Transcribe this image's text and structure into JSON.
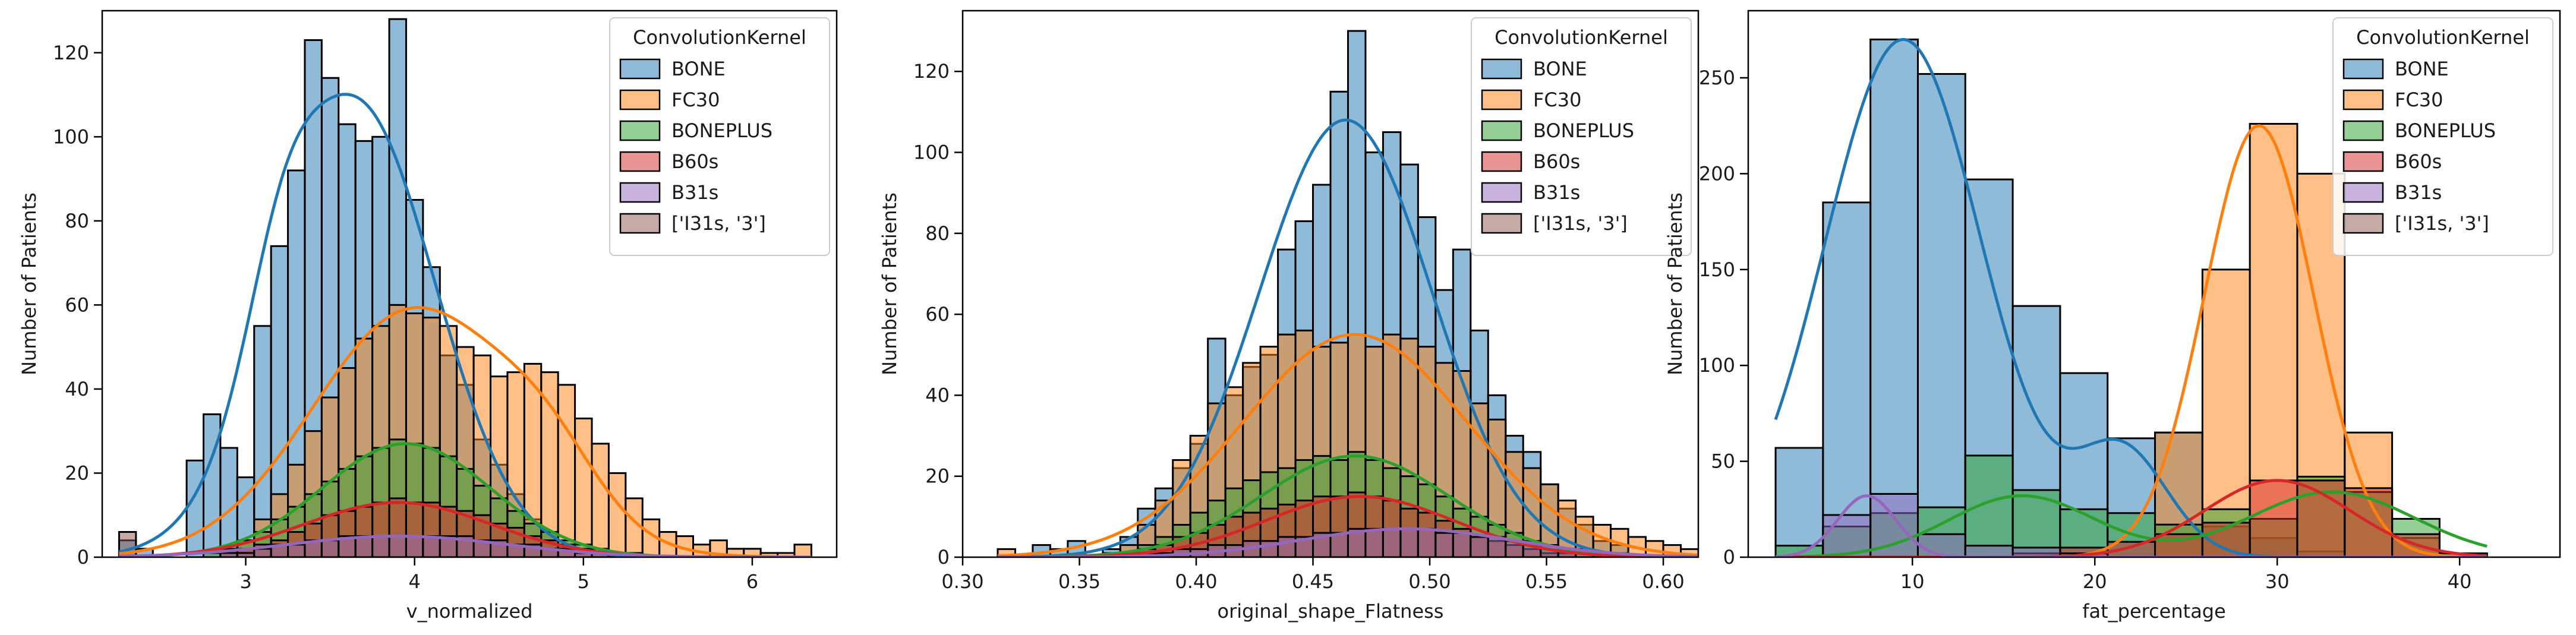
{
  "colors": {
    "BONE": "#1f77b4",
    "FC30": "#ff7f0e",
    "BONEPLUS": "#2ca02c",
    "B60s": "#d62728",
    "B31s": "#9467bd",
    "I31s": "#8c564b"
  },
  "chart_data": [
    {
      "type": "histogram",
      "title": "",
      "xlabel": "v_normalized",
      "ylabel": "Number of Patients",
      "xlim": [
        2.15,
        6.5
      ],
      "ylim": [
        0,
        130
      ],
      "xticks": [
        3,
        4,
        5,
        6
      ],
      "yticks": [
        0,
        20,
        40,
        60,
        80,
        100,
        120
      ],
      "legend_title": "ConvolutionKernel",
      "legend": [
        "BONE",
        "FC30",
        "BONEPLUS",
        "B60s",
        "B31s",
        "['I31s, '3']"
      ],
      "bins": {
        "start": 2.25,
        "width": 0.1,
        "count": 41
      },
      "series": [
        {
          "name": "BONE",
          "key": "BONE",
          "counts": [
            4,
            2,
            0,
            0,
            23,
            34,
            26,
            19,
            55,
            74,
            92,
            123,
            114,
            103,
            99,
            100,
            128,
            85,
            69,
            48,
            41,
            28,
            22,
            15,
            9,
            6,
            0,
            0,
            0,
            0,
            0,
            0,
            0,
            0,
            0,
            0,
            0,
            0,
            0,
            0,
            0
          ],
          "kde": {
            "amp": 108,
            "mu": 3.65,
            "sigma": 0.47,
            "amp2": 20,
            "mu2": 3.2,
            "sigma2": 0.2
          }
        },
        {
          "name": "FC30",
          "key": "FC30",
          "counts": [
            0,
            0,
            0,
            0,
            0,
            0,
            0,
            4,
            9,
            15,
            22,
            30,
            38,
            45,
            52,
            55,
            60,
            58,
            57,
            55,
            50,
            48,
            43,
            44,
            46,
            44,
            41,
            33,
            27,
            20,
            14,
            9,
            6,
            5,
            3,
            4,
            2,
            2,
            1,
            1,
            3
          ],
          "kde": {
            "amp": 59,
            "mu": 4.0,
            "sigma": 0.6,
            "amp2": 12,
            "mu2": 4.8,
            "sigma2": 0.3
          }
        },
        {
          "name": "BONEPLUS",
          "key": "BONEPLUS",
          "counts": [
            0,
            0,
            0,
            0,
            0,
            1,
            2,
            4,
            6,
            9,
            12,
            15,
            18,
            21,
            24,
            26,
            28,
            27,
            26,
            24,
            21,
            17,
            14,
            11,
            8,
            6,
            4,
            3,
            2,
            1,
            1,
            0,
            0,
            0,
            0,
            0,
            0,
            0,
            0,
            0,
            0
          ],
          "kde": {
            "amp": 27,
            "mu": 3.95,
            "sigma": 0.5
          }
        },
        {
          "name": "B60s",
          "key": "B60s",
          "counts": [
            0,
            0,
            0,
            0,
            0,
            0,
            1,
            2,
            3,
            4,
            6,
            8,
            10,
            11,
            12,
            13,
            14,
            13,
            13,
            12,
            11,
            10,
            8,
            7,
            5,
            4,
            3,
            2,
            1,
            1,
            0,
            0,
            0,
            0,
            0,
            0,
            0,
            0,
            0,
            0,
            0
          ],
          "kde": {
            "amp": 13,
            "mu": 3.9,
            "sigma": 0.55
          }
        },
        {
          "name": "B31s",
          "key": "B31s",
          "counts": [
            0,
            0,
            0,
            0,
            0,
            0,
            1,
            1,
            2,
            3,
            3,
            4,
            4,
            5,
            5,
            5,
            5,
            5,
            5,
            5,
            5,
            4,
            4,
            3,
            3,
            2,
            2,
            1,
            1,
            1,
            0,
            0,
            0,
            0,
            0,
            0,
            0,
            0,
            0,
            0,
            0
          ],
          "kde": {
            "amp": 5,
            "mu": 3.9,
            "sigma": 0.65
          }
        },
        {
          "name": "['I31s, '3']",
          "key": "I31s",
          "counts": [
            6,
            0,
            0,
            0,
            0,
            0,
            0,
            0,
            0,
            0,
            0,
            0,
            0,
            0,
            0,
            0,
            0,
            0,
            0,
            0,
            0,
            0,
            0,
            0,
            0,
            0,
            0,
            0,
            0,
            0,
            0,
            0,
            0,
            0,
            0,
            0,
            0,
            0,
            0,
            0,
            0
          ],
          "kde": null
        }
      ]
    },
    {
      "type": "histogram",
      "title": "",
      "xlabel": "original_shape_Flatness",
      "ylabel": "Number of Patients",
      "xlim": [
        0.3,
        0.615
      ],
      "ylim": [
        0,
        135
      ],
      "xticks": [
        0.3,
        0.35,
        0.4,
        0.45,
        0.5,
        0.55,
        0.6
      ],
      "yticks": [
        0,
        20,
        40,
        60,
        80,
        100,
        120
      ],
      "legend_title": "ConvolutionKernel",
      "legend": [
        "BONE",
        "FC30",
        "BONEPLUS",
        "B60s",
        "B31s",
        "['I31s, '3']"
      ],
      "bins": {
        "start": 0.315,
        "width": 0.0075,
        "count": 40
      },
      "series": [
        {
          "name": "BONE",
          "key": "BONE",
          "counts": [
            0,
            0,
            3,
            2,
            4,
            0,
            2,
            5,
            12,
            17,
            22,
            28,
            54,
            40,
            47,
            50,
            76,
            83,
            92,
            115,
            130,
            100,
            105,
            97,
            84,
            66,
            76,
            56,
            40,
            30,
            26,
            18,
            12,
            8,
            4,
            3,
            0,
            0,
            0,
            0
          ],
          "kde": {
            "amp": 108,
            "mu": 0.464,
            "sigma": 0.037
          }
        },
        {
          "name": "FC30",
          "key": "FC30",
          "counts": [
            2,
            0,
            0,
            0,
            0,
            0,
            1,
            3,
            8,
            14,
            24,
            30,
            38,
            42,
            48,
            52,
            55,
            56,
            52,
            53,
            55,
            52,
            55,
            54,
            52,
            48,
            46,
            38,
            34,
            26,
            22,
            18,
            14,
            10,
            8,
            7,
            5,
            4,
            3,
            2
          ],
          "kde": {
            "amp": 55,
            "mu": 0.468,
            "sigma": 0.048
          }
        },
        {
          "name": "BONEPLUS",
          "key": "BONEPLUS",
          "counts": [
            0,
            0,
            0,
            0,
            0,
            0,
            0,
            1,
            3,
            5,
            8,
            11,
            14,
            17,
            19,
            21,
            22,
            24,
            25,
            24,
            26,
            24,
            22,
            20,
            18,
            15,
            12,
            10,
            8,
            6,
            4,
            3,
            2,
            1,
            1,
            0,
            0,
            0,
            0,
            0
          ],
          "kde": {
            "amp": 25,
            "mu": 0.468,
            "sigma": 0.04
          }
        },
        {
          "name": "B60s",
          "key": "B60s",
          "counts": [
            0,
            0,
            0,
            0,
            0,
            0,
            0,
            1,
            2,
            3,
            5,
            6,
            8,
            10,
            11,
            12,
            13,
            14,
            15,
            15,
            16,
            15,
            14,
            12,
            11,
            9,
            7,
            5,
            4,
            3,
            2,
            1,
            1,
            0,
            0,
            0,
            0,
            0,
            0,
            0
          ],
          "kde": {
            "amp": 15,
            "mu": 0.47,
            "sigma": 0.04
          }
        },
        {
          "name": "B31s",
          "key": "B31s",
          "counts": [
            0,
            0,
            0,
            0,
            0,
            0,
            0,
            0,
            1,
            1,
            2,
            2,
            3,
            3,
            4,
            4,
            5,
            5,
            6,
            6,
            7,
            7,
            7,
            7,
            7,
            6,
            6,
            5,
            5,
            4,
            3,
            3,
            2,
            2,
            1,
            1,
            0,
            0,
            0,
            0
          ],
          "kde": {
            "amp": 7,
            "mu": 0.49,
            "sigma": 0.045
          }
        },
        {
          "name": "['I31s, '3']",
          "key": "I31s",
          "counts": [
            0,
            0,
            0,
            0,
            0,
            0,
            0,
            0,
            0,
            0,
            0,
            0,
            0,
            0,
            0,
            0,
            0,
            0,
            0,
            0,
            0,
            0,
            0,
            0,
            0,
            0,
            0,
            0,
            0,
            0,
            0,
            0,
            0,
            0,
            0,
            0,
            0,
            0,
            0,
            0
          ],
          "kde": null
        }
      ]
    },
    {
      "type": "histogram",
      "title": "",
      "xlabel": "fat_percentage",
      "ylabel": "Number of Patients",
      "xlim": [
        1.0,
        45.5
      ],
      "ylim": [
        0,
        285
      ],
      "xticks": [
        10,
        20,
        30,
        40
      ],
      "yticks": [
        0,
        50,
        100,
        150,
        200,
        250
      ],
      "legend_title": "ConvolutionKernel",
      "legend": [
        "BONE",
        "FC30",
        "BONEPLUS",
        "B60s",
        "B31s",
        "['I31s, '3']"
      ],
      "bins": {
        "start": 2.5,
        "width": 2.6,
        "count": 15
      },
      "series": [
        {
          "name": "BONE",
          "key": "BONE",
          "counts": [
            57,
            185,
            270,
            252,
            197,
            131,
            96,
            62,
            65,
            16,
            10,
            3,
            0,
            0,
            0
          ],
          "kde": {
            "amp": 270,
            "mu": 9.5,
            "sigma": 4.3,
            "amp2": 55,
            "mu2": 21.5,
            "sigma2": 2.5
          }
        },
        {
          "name": "FC30",
          "key": "FC30",
          "counts": [
            0,
            0,
            0,
            0,
            0,
            0,
            0,
            0,
            65,
            150,
            226,
            200,
            65,
            10,
            0
          ],
          "kde": {
            "amp": 225,
            "mu": 29.0,
            "sigma": 3.0
          }
        },
        {
          "name": "BONEPLUS",
          "key": "BONEPLUS",
          "counts": [
            6,
            16,
            23,
            26,
            53,
            35,
            25,
            23,
            17,
            25,
            20,
            42,
            34,
            20,
            2
          ],
          "kde": {
            "amp": 32,
            "mu": 16.0,
            "sigma": 4.0,
            "amp2": 34,
            "mu2": 33.0,
            "sigma2": 4.5
          }
        },
        {
          "name": "B60s",
          "key": "B60s",
          "counts": [
            0,
            0,
            0,
            0,
            0,
            2,
            5,
            8,
            12,
            18,
            40,
            40,
            36,
            12,
            2
          ],
          "kde": {
            "amp": 40,
            "mu": 30.0,
            "sigma": 4.0
          }
        },
        {
          "name": "B31s",
          "key": "B31s",
          "counts": [
            0,
            22,
            33,
            12,
            6,
            5,
            2,
            0,
            0,
            0,
            0,
            0,
            0,
            0,
            0
          ],
          "kde": {
            "amp": 32,
            "mu": 7.5,
            "sigma": 1.6
          }
        },
        {
          "name": "['I31s, '3']",
          "key": "I31s",
          "counts": [
            0,
            0,
            0,
            0,
            0,
            0,
            0,
            0,
            0,
            0,
            0,
            0,
            0,
            0,
            0
          ],
          "kde": null
        }
      ]
    }
  ]
}
